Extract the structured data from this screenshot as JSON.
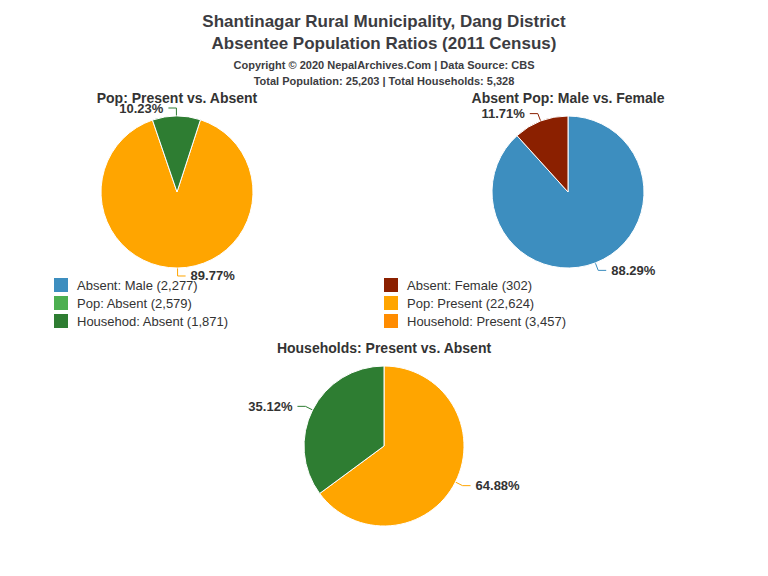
{
  "title": "Shantinagar Rural Municipality, Dang District",
  "subtitle": "Absentee Population Ratios (2011 Census)",
  "annotations": [
    "Copyright © 2020 NepalArchives.Com | Data Source: CBS",
    "Total Population: 25,203 | Total Households: 5,328"
  ],
  "legend_items": [
    {
      "label": "Absent: Male (2,277)",
      "color": "#3D8EBF"
    },
    {
      "label": "Absent: Female (302)",
      "color": "#8B2000"
    },
    {
      "label": "Pop: Absent (2,579)",
      "color": "#4CAF50"
    },
    {
      "label": "Pop: Present (22,624)",
      "color": "#FFA500"
    },
    {
      "label": "Househod: Absent (1,871)",
      "color": "#2E7D32"
    },
    {
      "label": "Household: Present (3,457)",
      "color": "#FF8C00"
    }
  ],
  "chart_data": [
    {
      "type": "pie",
      "title": "Pop: Present vs. Absent",
      "values": [
        89.77,
        10.23
      ],
      "value_labels": [
        "89.77%",
        "10.23%"
      ],
      "colors": [
        "#FFA500",
        "#2E7D32"
      ],
      "data_labels": true
    },
    {
      "type": "pie",
      "title": "Absent Pop: Male vs. Female",
      "values": [
        88.29,
        11.71
      ],
      "value_labels": [
        "88.29%",
        "11.71%"
      ],
      "colors": [
        "#3D8EBF",
        "#8B2000"
      ],
      "data_labels": true
    },
    {
      "type": "pie",
      "title": "Households: Present vs. Absent",
      "values": [
        64.88,
        35.12
      ],
      "value_labels": [
        "64.88%",
        "35.12%"
      ],
      "colors": [
        "#FFA500",
        "#2E7D32"
      ],
      "data_labels": true
    }
  ]
}
